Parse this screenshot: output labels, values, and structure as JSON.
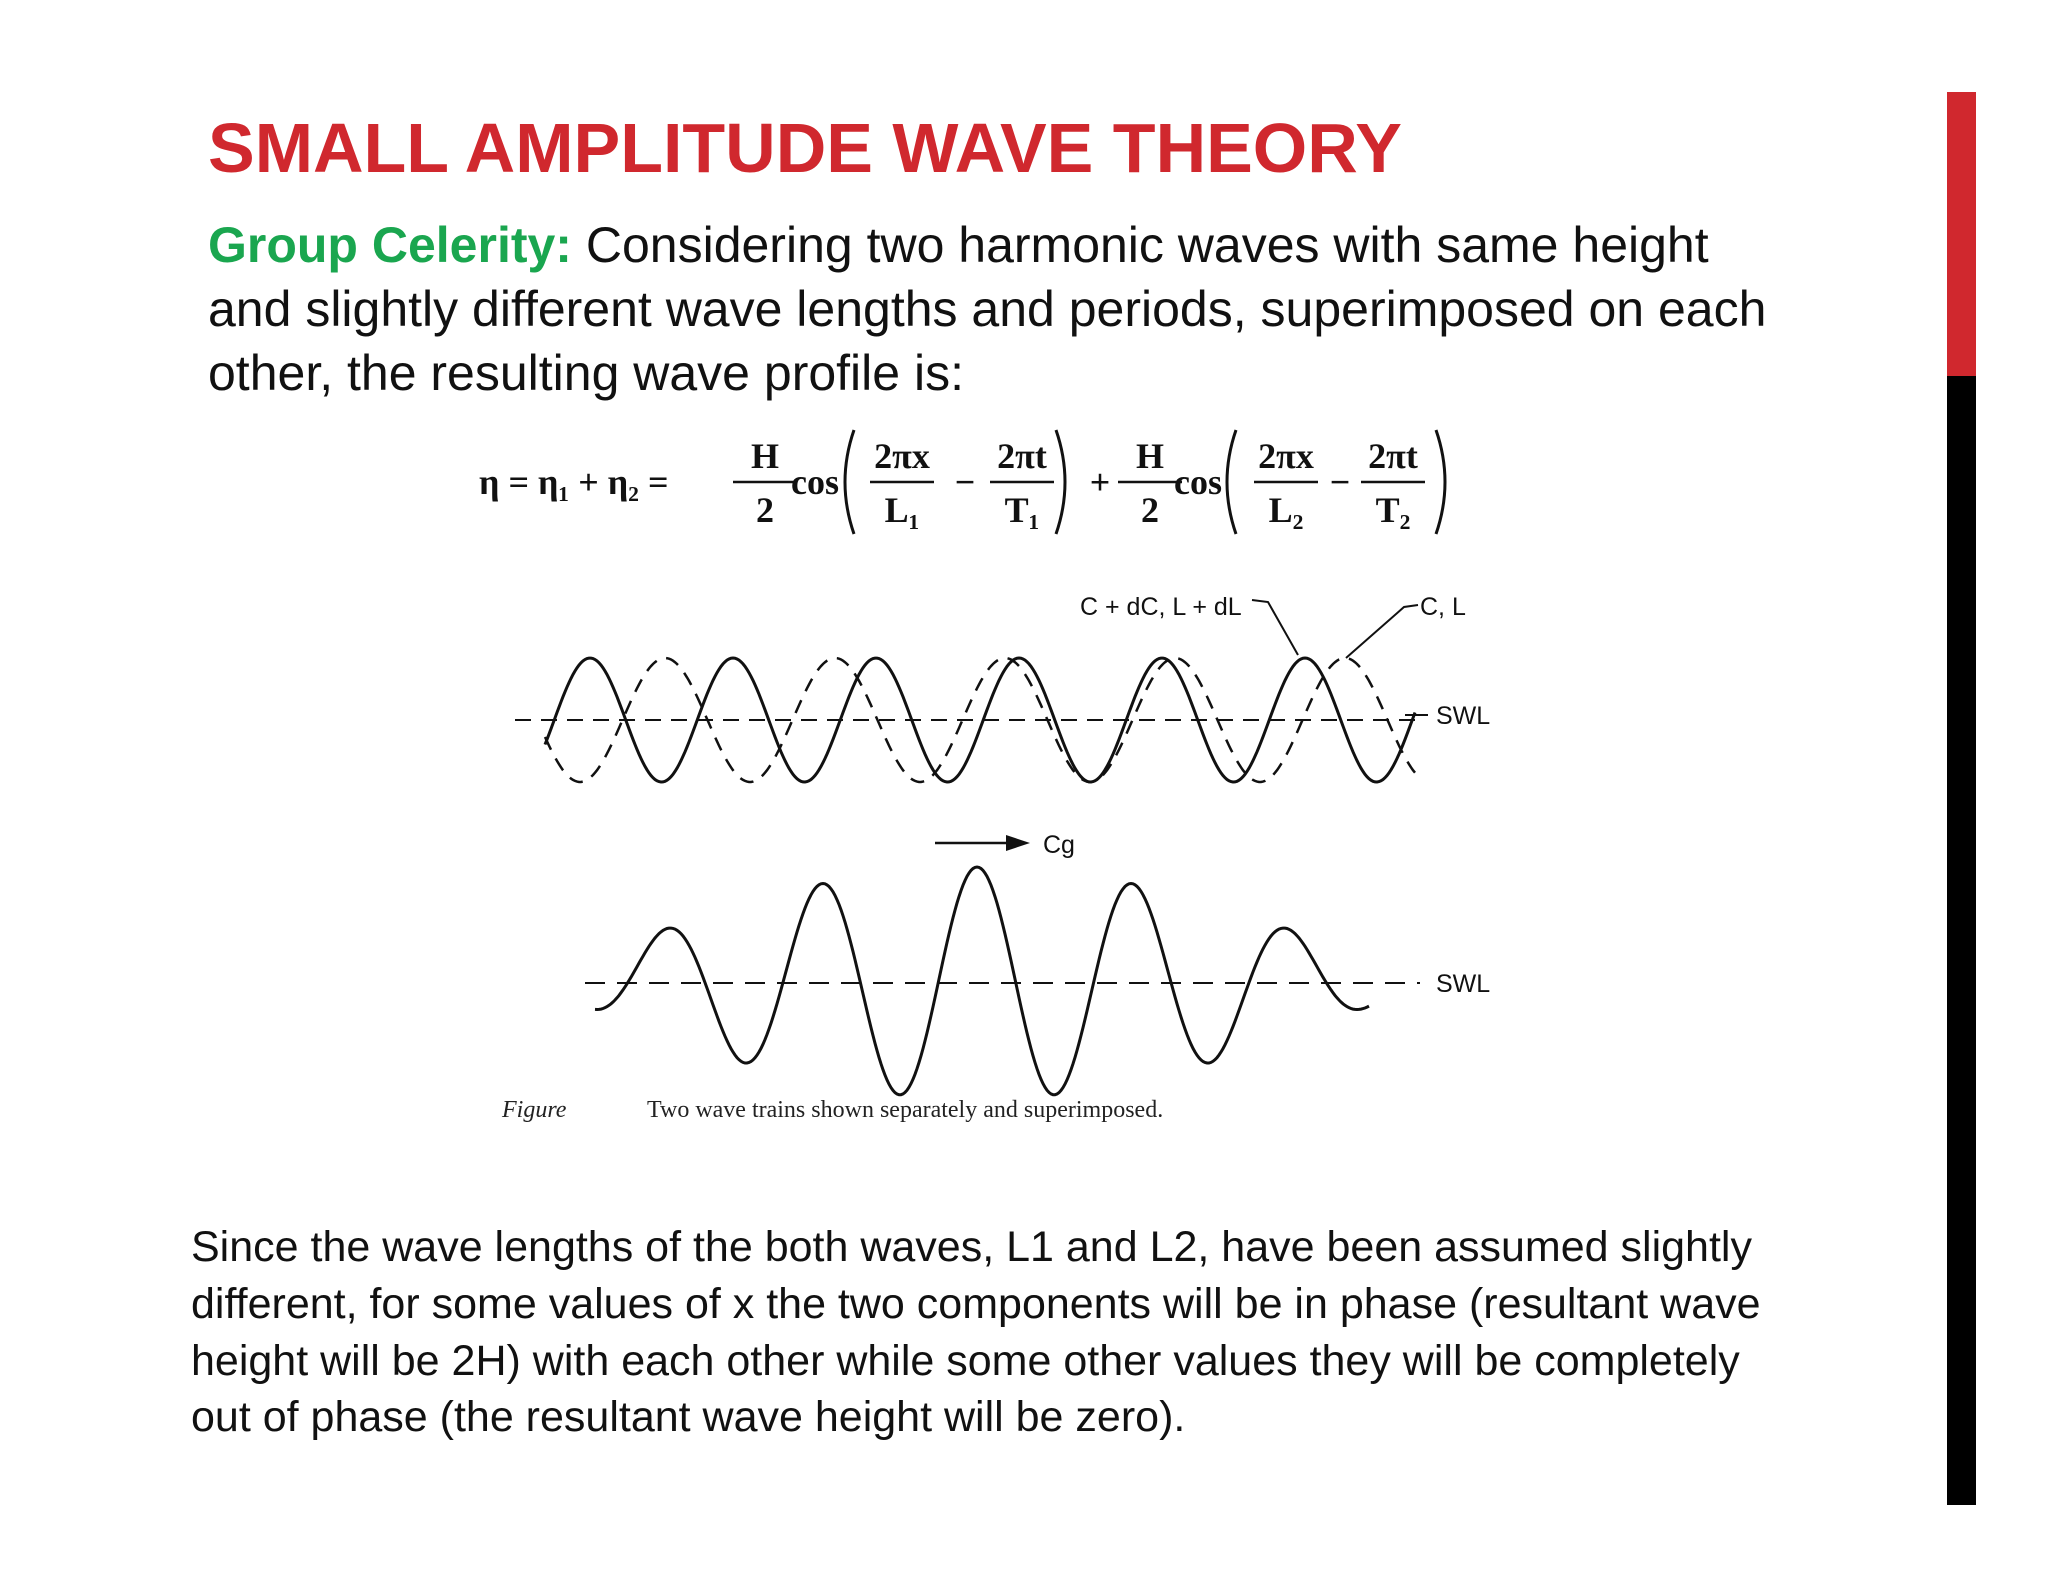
{
  "header": {
    "title": "SMALL AMPLITUDE WAVE THEORY"
  },
  "intro": {
    "label": "Group Celerity:",
    "lines": [
      "Considering two harmonic waves with same height",
      "and slightly different wave lengths and periods, superimposed on each",
      "other, the resulting wave profile is:"
    ]
  },
  "equation": {
    "lhs": "η = η₁ + η₂ =",
    "plus": "+",
    "terms": [
      {
        "coefficient": {
          "num": "H",
          "den": "2"
        },
        "function": "cos",
        "first": {
          "num": "2πx",
          "den": "L₁"
        },
        "minus": "−",
        "second": {
          "num": "2πt",
          "den": "T₁"
        }
      },
      {
        "coefficient": {
          "num": "H",
          "den": "2"
        },
        "function": "cos",
        "first": {
          "num": "2πx",
          "den": "L₂"
        },
        "minus": "−",
        "second": {
          "num": "2πt",
          "den": "T₂"
        }
      }
    ]
  },
  "figure": {
    "label_shifted": "C + dC, L + dL",
    "label_base": "C, L",
    "swl_top": "SWL",
    "group_arrow": "Cg",
    "swl_bottom": "SWL",
    "caption_label": "Figure",
    "caption": "Two wave trains shown separately and superimposed."
  },
  "conclusion": {
    "lines": [
      "Since the wave lengths of the both waves, L1 and L2, have been assumed slightly",
      "different, for some values of x the two components will be in phase (resultant wave",
      "height will be 2H) with each other while some other values they will be completely",
      "out of phase (the resultant wave height will be zero)."
    ]
  }
}
